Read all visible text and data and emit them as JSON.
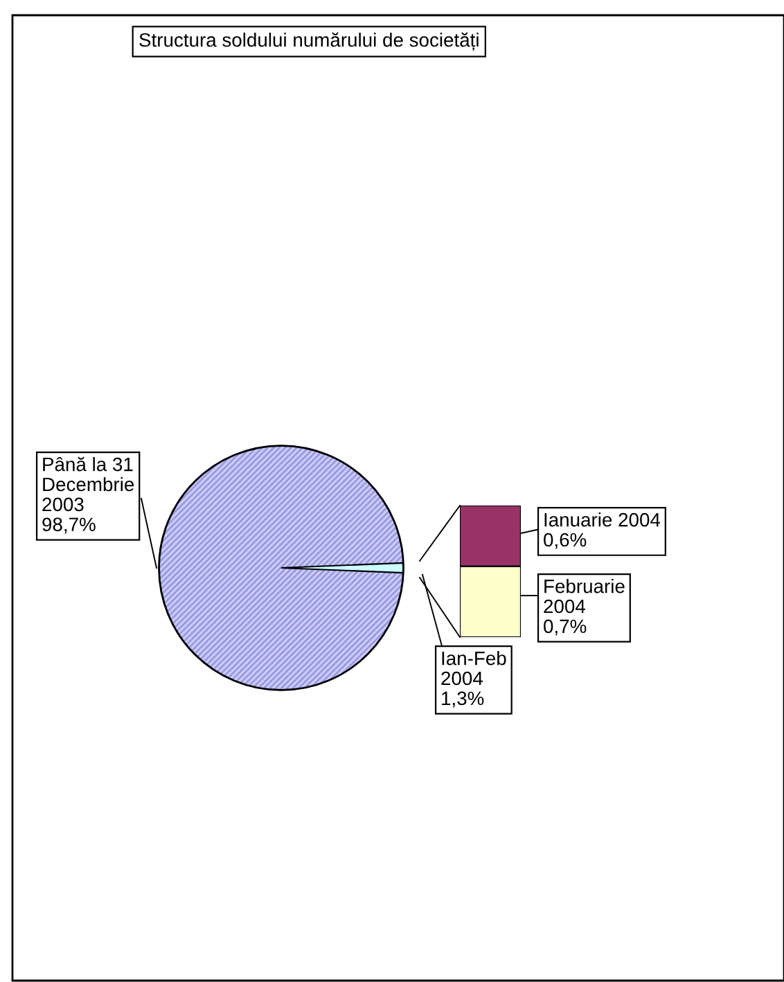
{
  "chart_data": [
    {
      "type": "pie",
      "title": "Structura soldului numărului de societăți",
      "categories": [
        "Până la 31 Decembrie 2003",
        "Ian-Feb 2004"
      ],
      "values": [
        98.7,
        1.3
      ],
      "value_labels": [
        "98,7%",
        "1,3%"
      ],
      "colors": [
        "#ccccff",
        "#ccffff"
      ]
    },
    {
      "type": "bar",
      "stacked": true,
      "categories": [
        null
      ],
      "series": [
        {
          "name": "Februarie 2004",
          "color": "#ffffcc",
          "values": [
            0.7
          ],
          "value_labels": [
            "0,7%"
          ]
        },
        {
          "name": "Ianuarie 2004",
          "color": "#993366",
          "values": [
            0.6
          ],
          "value_labels": [
            "0,6%"
          ]
        }
      ]
    }
  ]
}
